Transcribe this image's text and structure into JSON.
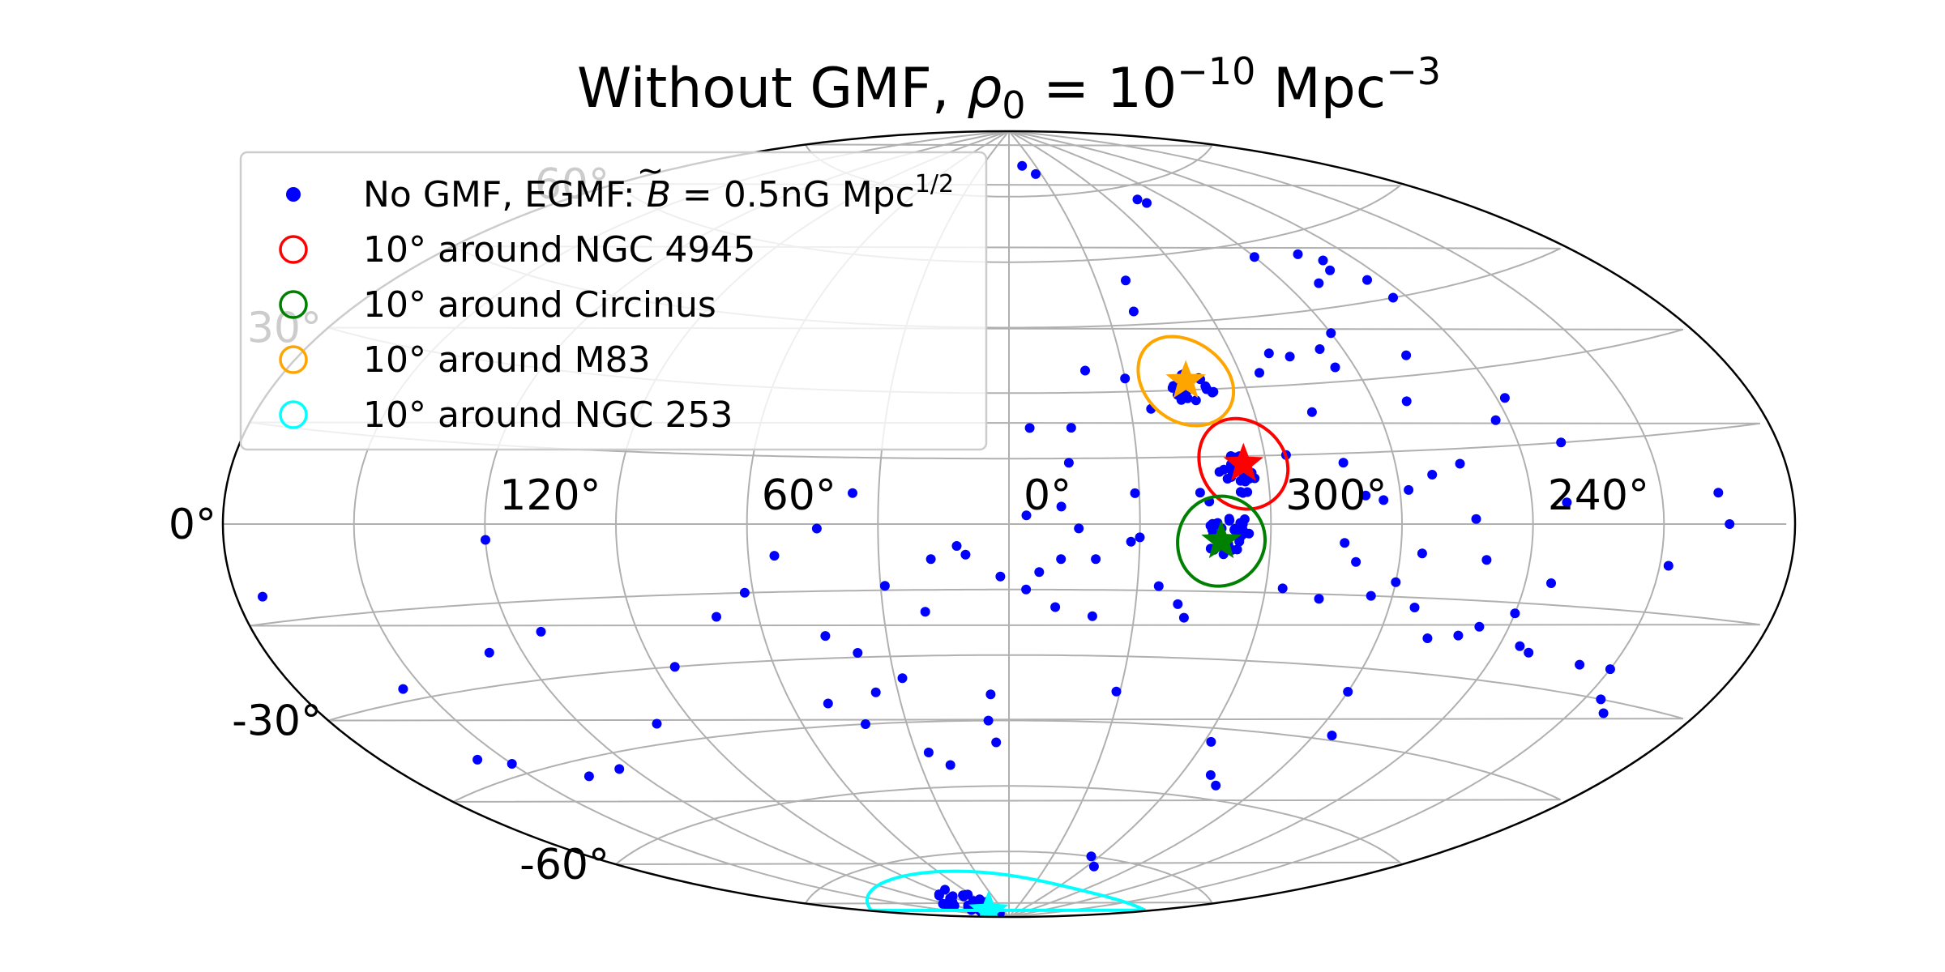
{
  "chart_data": {
    "type": "scatter",
    "projection": "aitoff",
    "coordinate_system": "galactic",
    "title": {
      "prefix": "Without GMF, ",
      "rho": "ρ",
      "rho_sub": "0",
      "eq": " = 10",
      "exp1": "−10",
      "unit": " Mpc",
      "exp2": "−3"
    },
    "x_tick_labels": [
      {
        "lon": 120,
        "label": "120°"
      },
      {
        "lon": 60,
        "label": "60°"
      },
      {
        "lon": 0,
        "label": "0°"
      },
      {
        "lon": 300,
        "label": "300°"
      },
      {
        "lon": 240,
        "label": "240°"
      }
    ],
    "y_tick_labels": [
      {
        "lat": 60,
        "label": "60°"
      },
      {
        "lat": 30,
        "label": "30°"
      },
      {
        "lat": 0,
        "label": "0°"
      },
      {
        "lat": -30,
        "label": "-30°"
      },
      {
        "lat": -60,
        "label": "-60°"
      }
    ],
    "grid": true,
    "legend": {
      "placement": "upper-left",
      "entries": [
        {
          "marker": "dot",
          "color": "#0000ff",
          "label_pre": "No GMF, EGMF: ",
          "label_b": "B",
          "label_mid": " = 0.5nG Mpc",
          "label_sup": "1/2"
        },
        {
          "marker": "circle",
          "color": "#ff0000",
          "label": "10° around NGC 4945"
        },
        {
          "marker": "circle",
          "color": "#008000",
          "label": "10° around Circinus"
        },
        {
          "marker": "circle",
          "color": "#ffa500",
          "label": "10° around M83"
        },
        {
          "marker": "circle",
          "color": "#00ffff",
          "label": "10° around NGC 253"
        }
      ]
    },
    "sources": [
      {
        "name": "NGC 4945",
        "l": 305.3,
        "b": 13.3,
        "color": "#ff0000",
        "radius_deg": 10
      },
      {
        "name": "Circinus",
        "l": 311.3,
        "b": -3.8,
        "color": "#008000",
        "radius_deg": 10
      },
      {
        "name": "M83",
        "l": 314.6,
        "b": 32.0,
        "color": "#ffa500",
        "radius_deg": 10
      },
      {
        "name": "NGC 253",
        "l": 97.4,
        "b": -88.0,
        "color": "#00ffff",
        "radius_deg": 10
      }
    ],
    "events": [
      [
        345,
        82
      ],
      [
        335,
        80
      ],
      [
        285,
        72
      ],
      [
        283,
        71
      ],
      [
        270,
        57
      ],
      [
        255,
        56
      ],
      [
        250,
        54
      ],
      [
        252,
        52
      ],
      [
        245,
        49
      ],
      [
        244,
        45
      ],
      [
        260,
        50
      ],
      [
        320,
        55
      ],
      [
        340,
        35
      ],
      [
        330,
        33
      ],
      [
        325,
        26
      ],
      [
        310,
        30
      ],
      [
        295,
        33
      ],
      [
        290,
        37
      ],
      [
        285,
        36
      ],
      [
        276,
        37
      ],
      [
        275,
        33
      ],
      [
        270,
        40
      ],
      [
        255,
        34
      ],
      [
        262,
        25
      ],
      [
        238,
        24
      ],
      [
        243,
        20
      ],
      [
        230,
        15
      ],
      [
        255,
        12
      ],
      [
        262,
        10
      ],
      [
        286,
        24
      ],
      [
        295,
        15
      ],
      [
        282,
        13
      ],
      [
        278,
        6
      ],
      [
        274,
        5
      ],
      [
        268,
        7
      ],
      [
        253,
        1
      ],
      [
        232,
        4
      ],
      [
        197,
        5
      ],
      [
        195,
        0
      ],
      [
        208,
        -7
      ],
      [
        234,
        -11
      ],
      [
        250,
        -7
      ],
      [
        265,
        -6
      ],
      [
        280,
        -8
      ],
      [
        283,
        -4
      ],
      [
        296,
        -14
      ],
      [
        287,
        -16
      ],
      [
        275,
        -15
      ],
      [
        270,
        -12
      ],
      [
        264,
        -17
      ],
      [
        258,
        -23
      ],
      [
        251,
        -22
      ],
      [
        247,
        -20
      ],
      [
        240,
        -17
      ],
      [
        235,
        -23
      ],
      [
        232,
        -24
      ],
      [
        218,
        -25
      ],
      [
        210,
        -25
      ],
      [
        206,
        -30
      ],
      [
        202,
        -32
      ],
      [
        270,
        -35
      ],
      [
        265,
        -44
      ],
      [
        290,
        -55
      ],
      [
        285,
        -57
      ],
      [
        298,
        -48
      ],
      [
        305,
        -75
      ],
      [
        295,
        -77
      ],
      [
        320,
        -18
      ],
      [
        318,
        -21
      ],
      [
        325,
        -14
      ],
      [
        332,
        -4
      ],
      [
        330,
        -3
      ],
      [
        340,
        -21
      ],
      [
        340,
        -8
      ],
      [
        348,
        -8
      ],
      [
        353,
        -11
      ],
      [
        10,
        -7
      ],
      [
        12,
        -5
      ],
      [
        18,
        -8
      ],
      [
        2,
        -12
      ],
      [
        356,
        -15
      ],
      [
        349,
        -19
      ],
      [
        331,
        -38
      ],
      [
        20,
        -20
      ],
      [
        29,
        -14
      ],
      [
        54,
        -7
      ],
      [
        44,
        -1
      ],
      [
        36,
        7
      ],
      [
        356,
        2
      ],
      [
        344,
        -1
      ],
      [
        331,
        7
      ],
      [
        316,
        7
      ],
      [
        314,
        5
      ],
      [
        348,
        4
      ],
      [
        355,
        22
      ],
      [
        345,
        22
      ],
      [
        322,
        48
      ],
      [
        346,
        14
      ],
      [
        28,
        -35
      ],
      [
        38,
        -29
      ],
      [
        5,
        -39
      ],
      [
        6,
        -45
      ],
      [
        4,
        -50
      ],
      [
        50,
        -40
      ],
      [
        42,
        -45
      ],
      [
        26,
        -52
      ],
      [
        20,
        -55
      ],
      [
        100,
        -41
      ],
      [
        85,
        -30
      ],
      [
        62,
        -15
      ],
      [
        70,
        -20
      ],
      [
        135,
        -48
      ],
      [
        124,
        -48
      ],
      [
        150,
        -43
      ],
      [
        157,
        -41
      ],
      [
        155,
        -28
      ],
      [
        113,
        -21
      ],
      [
        128,
        -24
      ],
      [
        174,
        -11
      ],
      [
        120,
        -3
      ],
      [
        45,
        -25
      ],
      [
        36,
        -38
      ]
    ],
    "clusters": [
      {
        "l": 307,
        "b": 11,
        "n": 24,
        "spread": 2.2
      },
      {
        "l": 310,
        "b": -2,
        "n": 34,
        "spread": 2.6
      },
      {
        "l": 313,
        "b": 31,
        "n": 20,
        "spread": 2.4
      },
      {
        "l": 90,
        "b": -85.5,
        "n": 38,
        "spread": 1.8
      }
    ]
  }
}
